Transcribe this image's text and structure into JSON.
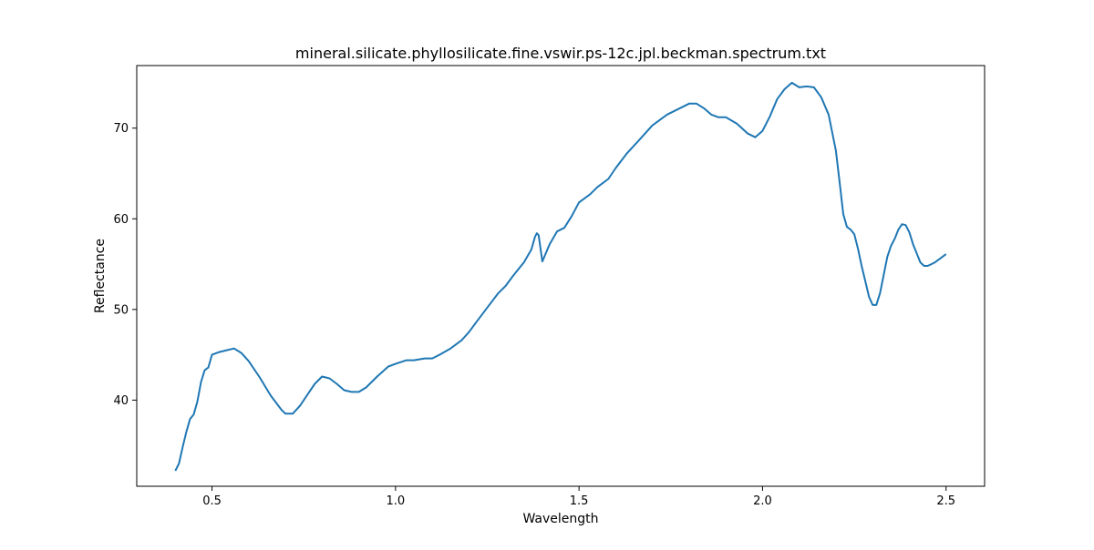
{
  "chart_data": {
    "type": "line",
    "title": "mineral.silicate.phyllosilicate.fine.vswir.ps-12c.jpl.beckman.spectrum.txt",
    "xlabel": "Wavelength",
    "ylabel": "Reflectance",
    "xlim": [
      0.295,
      2.605
    ],
    "ylim": [
      30.5,
      76.9
    ],
    "x_ticks": [
      0.5,
      1.0,
      1.5,
      2.0,
      2.5
    ],
    "x_tick_labels": [
      "0.5",
      "1.0",
      "1.5",
      "2.0",
      "2.5"
    ],
    "y_ticks": [
      40,
      50,
      60,
      70
    ],
    "y_tick_labels": [
      "40",
      "50",
      "60",
      "70"
    ],
    "grid": false,
    "series": [
      {
        "color": "#1f77b4",
        "x": [
          0.4,
          0.41,
          0.42,
          0.43,
          0.44,
          0.45,
          0.46,
          0.47,
          0.48,
          0.49,
          0.5,
          0.52,
          0.54,
          0.56,
          0.58,
          0.6,
          0.63,
          0.66,
          0.69,
          0.7,
          0.72,
          0.74,
          0.76,
          0.78,
          0.8,
          0.82,
          0.84,
          0.86,
          0.88,
          0.9,
          0.92,
          0.95,
          0.98,
          1.0,
          1.03,
          1.05,
          1.08,
          1.1,
          1.12,
          1.15,
          1.18,
          1.2,
          1.22,
          1.25,
          1.28,
          1.3,
          1.32,
          1.35,
          1.37,
          1.375,
          1.38,
          1.385,
          1.39,
          1.4,
          1.42,
          1.44,
          1.46,
          1.48,
          1.5,
          1.53,
          1.55,
          1.58,
          1.6,
          1.63,
          1.66,
          1.7,
          1.74,
          1.78,
          1.8,
          1.82,
          1.84,
          1.86,
          1.88,
          1.9,
          1.93,
          1.96,
          1.98,
          2.0,
          2.02,
          2.04,
          2.06,
          2.08,
          2.1,
          2.12,
          2.14,
          2.16,
          2.18,
          2.2,
          2.21,
          2.22,
          2.23,
          2.24,
          2.25,
          2.26,
          2.27,
          2.28,
          2.29,
          2.3,
          2.31,
          2.32,
          2.33,
          2.34,
          2.35,
          2.36,
          2.37,
          2.38,
          2.39,
          2.4,
          2.41,
          2.42,
          2.43,
          2.44,
          2.45,
          2.46,
          2.47,
          2.48,
          2.49,
          2.5
        ],
        "y": [
          32.2,
          33.0,
          34.8,
          36.5,
          37.9,
          38.4,
          39.8,
          42.0,
          43.3,
          43.6,
          45.0,
          45.3,
          45.5,
          45.7,
          45.2,
          44.3,
          42.5,
          40.5,
          38.9,
          38.5,
          38.5,
          39.4,
          40.6,
          41.8,
          42.6,
          42.4,
          41.8,
          41.1,
          40.9,
          40.9,
          41.4,
          42.6,
          43.7,
          44.0,
          44.4,
          44.4,
          44.6,
          44.6,
          45.0,
          45.7,
          46.6,
          47.5,
          48.6,
          50.2,
          51.8,
          52.6,
          53.7,
          55.2,
          56.6,
          57.3,
          58.0,
          58.4,
          58.2,
          55.3,
          57.2,
          58.6,
          59.0,
          60.3,
          61.8,
          62.7,
          63.5,
          64.4,
          65.6,
          67.2,
          68.5,
          70.3,
          71.5,
          72.3,
          72.7,
          72.7,
          72.2,
          71.5,
          71.2,
          71.2,
          70.5,
          69.4,
          69.0,
          69.7,
          71.3,
          73.2,
          74.3,
          75.0,
          74.5,
          74.6,
          74.5,
          73.4,
          71.5,
          67.5,
          64.0,
          60.5,
          59.1,
          58.8,
          58.3,
          56.7,
          54.8,
          53.1,
          51.4,
          50.5,
          50.5,
          51.8,
          53.8,
          55.8,
          57.0,
          57.8,
          58.8,
          59.4,
          59.3,
          58.5,
          57.2,
          56.2,
          55.2,
          54.8,
          54.8,
          55.0,
          55.2,
          55.5,
          55.8,
          56.1
        ]
      }
    ]
  }
}
